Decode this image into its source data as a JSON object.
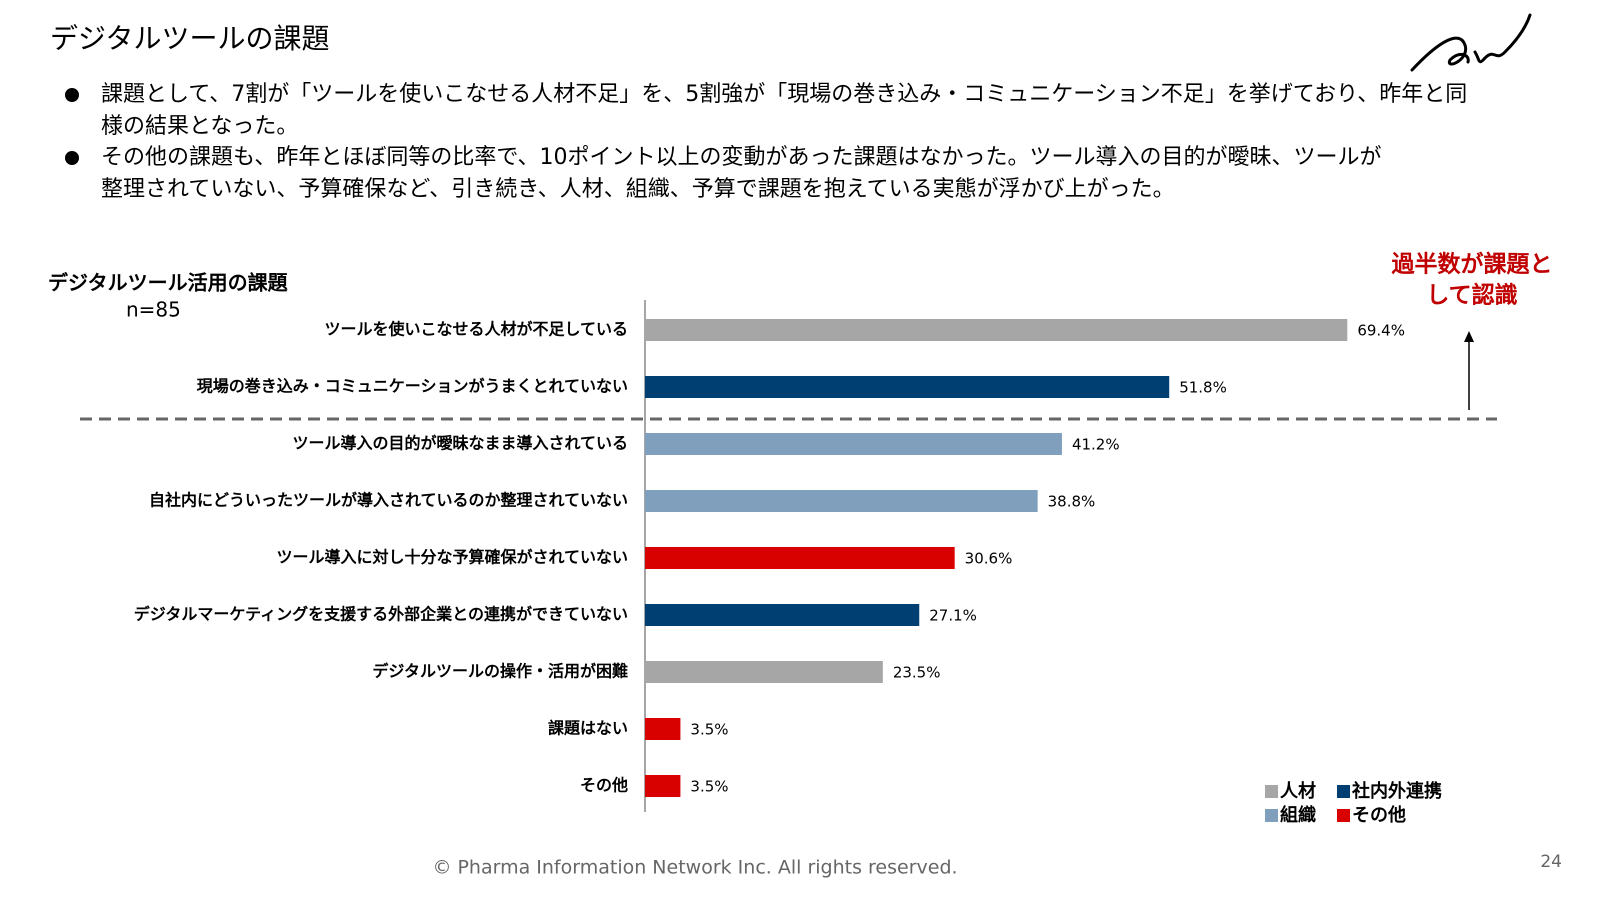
{
  "header": {
    "title": "デジタルツールの課題"
  },
  "bullets": [
    [
      "課題として、7割が「ツールを使いこなせる人材不足」を、5割強が「現場の巻き込み・コミュニケーション不足」を挙げており、昨年と同",
      "様の結果となった。"
    ],
    [
      "その他の課題も、昨年とほぼ同等の比率で、10ポイント以上の変動があった課題はなかった。ツール導入の目的が曖昧、ツールが",
      "整理されていない、予算確保など、引き続き、人材、組織、予算で課題を抱えている実態が浮かび上がった。"
    ]
  ],
  "chart_data": {
    "type": "bar",
    "orientation": "horizontal",
    "title": "デジタルツール活用の課題",
    "subtitle": "n=85",
    "categories": [
      "ツールを使いこなせる人材が不足している",
      "現場の巻き込み・コミュニケーションがうまくとれていない",
      "ツール導入の目的が曖昧なまま導入されている",
      "自社内にどういったツールが導入されているのか整理されていない",
      "ツール導入に対し十分な予算確保がされていない",
      "デジタルマーケティングを支援する外部企業との連携ができていない",
      "デジタルツールの操作・活用が困難",
      "課題はない",
      "その他"
    ],
    "values": [
      69.4,
      51.8,
      41.2,
      38.8,
      30.6,
      27.1,
      23.5,
      3.5,
      3.5
    ],
    "value_labels": [
      "69.4%",
      "51.8%",
      "41.2%",
      "38.8%",
      "30.6%",
      "27.1%",
      "23.5%",
      "3.5%",
      "3.5%"
    ],
    "colors": [
      "#a6a6a6",
      "#003f72",
      "#7f9fbc",
      "#7f9fbc",
      "#d90000",
      "#003f72",
      "#a6a6a6",
      "#d90000",
      "#d90000"
    ],
    "legend": [
      {
        "name": "人材",
        "color": "#a6a6a6"
      },
      {
        "name": "社内外連携",
        "color": "#003f72"
      },
      {
        "name": "組織",
        "color": "#7f9fbc"
      },
      {
        "name": "その他",
        "color": "#d90000"
      }
    ],
    "annotation": [
      "過半数が課題と",
      "して認識"
    ]
  },
  "footer": {
    "copyright": "© Pharma Information Network Inc.  All rights reserved.",
    "page": "24"
  }
}
